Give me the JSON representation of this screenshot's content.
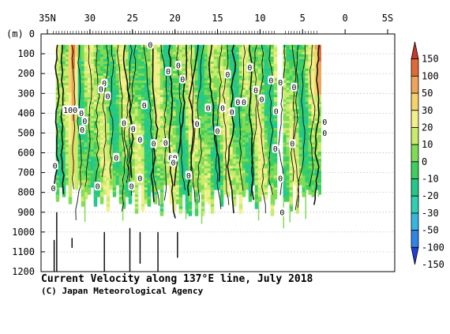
{
  "chart_data": {
    "type": "heatmap",
    "title": "Current Velocity along 137°E line, July 2018",
    "credit": "(C) Japan Meteorological Agency",
    "x_axis": {
      "ticks": [
        {
          "value": 35,
          "label": "35N"
        },
        {
          "value": 30,
          "label": "30"
        },
        {
          "value": 25,
          "label": "25"
        },
        {
          "value": 20,
          "label": "20"
        },
        {
          "value": 15,
          "label": "15"
        },
        {
          "value": 10,
          "label": "10"
        },
        {
          "value": 5,
          "label": "5"
        },
        {
          "value": 0,
          "label": "0"
        },
        {
          "value": -5,
          "label": "5S"
        }
      ],
      "range": [
        35,
        -5
      ]
    },
    "y_axis": {
      "unit_label": "(m)",
      "ticks": [
        0,
        100,
        200,
        300,
        400,
        500,
        600,
        700,
        800,
        900,
        1000,
        1100,
        1200
      ],
      "range": [
        0,
        1200
      ]
    },
    "colorbar": {
      "levels": [
        -150,
        -100,
        -50,
        -30,
        -20,
        -10,
        0,
        10,
        20,
        30,
        50,
        100,
        150
      ],
      "labels": [
        "150",
        "100",
        "50",
        "30",
        "20",
        "10",
        "0",
        "-10",
        "-20",
        "-30",
        "-50",
        "-100",
        "-150"
      ],
      "colors": [
        "#1f3fd6",
        "#2f86e6",
        "#35b8e0",
        "#2ed0b4",
        "#22c98a",
        "#3ecf5e",
        "#7fdc57",
        "#c8ec6b",
        "#f2f08a",
        "#f6d26a",
        "#f0a45a",
        "#e06a3a",
        "#c9382a"
      ]
    },
    "sections": [
      {
        "lat_from": 34.0,
        "lat_to": 8.3,
        "depth_max": 900
      },
      {
        "lat_from": 7.3,
        "lat_to": 3.0,
        "depth_max": 900
      }
    ],
    "jets": [
      {
        "lat": 32.2,
        "depth_max": 850,
        "direction": "eastward",
        "peak": 100
      },
      {
        "lat": 3.3,
        "depth_max": 300,
        "direction": "eastward",
        "peak": 150
      }
    ],
    "contour_labels": [
      {
        "text": "100",
        "lat": 32.3,
        "depth": 385
      },
      {
        "text": "0",
        "lat": 22.9,
        "depth": 55
      },
      {
        "text": "0",
        "lat": 19.6,
        "depth": 160
      },
      {
        "text": "0",
        "lat": 20.8,
        "depth": 190
      },
      {
        "text": "0",
        "lat": 13.8,
        "depth": 205
      },
      {
        "text": "0",
        "lat": 11.2,
        "depth": 170
      },
      {
        "text": "0",
        "lat": 28.3,
        "depth": 250
      },
      {
        "text": "0",
        "lat": 28.7,
        "depth": 280
      },
      {
        "text": "0",
        "lat": 19.1,
        "depth": 230
      },
      {
        "text": "0",
        "lat": 10.5,
        "depth": 285
      },
      {
        "text": "0",
        "lat": 9.8,
        "depth": 330
      },
      {
        "text": "0",
        "lat": 8.7,
        "depth": 235
      },
      {
        "text": "0",
        "lat": 7.6,
        "depth": 245
      },
      {
        "text": "0",
        "lat": 6.0,
        "depth": 270
      },
      {
        "text": "0",
        "lat": 27.9,
        "depth": 315
      },
      {
        "text": "0",
        "lat": 23.6,
        "depth": 360
      },
      {
        "text": "0",
        "lat": 16.1,
        "depth": 375
      },
      {
        "text": "0",
        "lat": 14.4,
        "depth": 375
      },
      {
        "text": "0",
        "lat": 12.6,
        "depth": 345
      },
      {
        "text": "0",
        "lat": 13.3,
        "depth": 395
      },
      {
        "text": "0",
        "lat": 11.9,
        "depth": 345
      },
      {
        "text": "0",
        "lat": 8.1,
        "depth": 390
      },
      {
        "text": "0",
        "lat": 31.0,
        "depth": 400
      },
      {
        "text": "0",
        "lat": 30.6,
        "depth": 440
      },
      {
        "text": "0",
        "lat": 26.0,
        "depth": 450
      },
      {
        "text": "0",
        "lat": 24.9,
        "depth": 480
      },
      {
        "text": "0",
        "lat": 17.4,
        "depth": 455
      },
      {
        "text": "0",
        "lat": 15.0,
        "depth": 490
      },
      {
        "text": "0",
        "lat": 30.9,
        "depth": 485
      },
      {
        "text": "0",
        "lat": 24.1,
        "depth": 535
      },
      {
        "text": "0",
        "lat": 22.5,
        "depth": 555
      },
      {
        "text": "0",
        "lat": 21.1,
        "depth": 550
      },
      {
        "text": "0",
        "lat": 6.2,
        "depth": 555
      },
      {
        "text": "0",
        "lat": 8.2,
        "depth": 580
      },
      {
        "text": "0",
        "lat": 2.4,
        "depth": 445
      },
      {
        "text": "0",
        "lat": 2.4,
        "depth": 500
      },
      {
        "text": "0",
        "lat": 26.9,
        "depth": 625
      },
      {
        "text": "0",
        "lat": 20.5,
        "depth": 625
      },
      {
        "text": "0",
        "lat": 20.0,
        "depth": 625
      },
      {
        "text": "0",
        "lat": 20.2,
        "depth": 650
      },
      {
        "text": "0",
        "lat": 34.1,
        "depth": 665
      },
      {
        "text": "0",
        "lat": 18.4,
        "depth": 715
      },
      {
        "text": "0",
        "lat": 24.1,
        "depth": 730
      },
      {
        "text": "0",
        "lat": 7.6,
        "depth": 730
      },
      {
        "text": "0",
        "lat": 25.1,
        "depth": 770
      },
      {
        "text": "0",
        "lat": 29.1,
        "depth": 770
      },
      {
        "text": "0",
        "lat": 34.3,
        "depth": 780
      },
      {
        "text": "0",
        "lat": 7.4,
        "depth": 900
      }
    ]
  }
}
